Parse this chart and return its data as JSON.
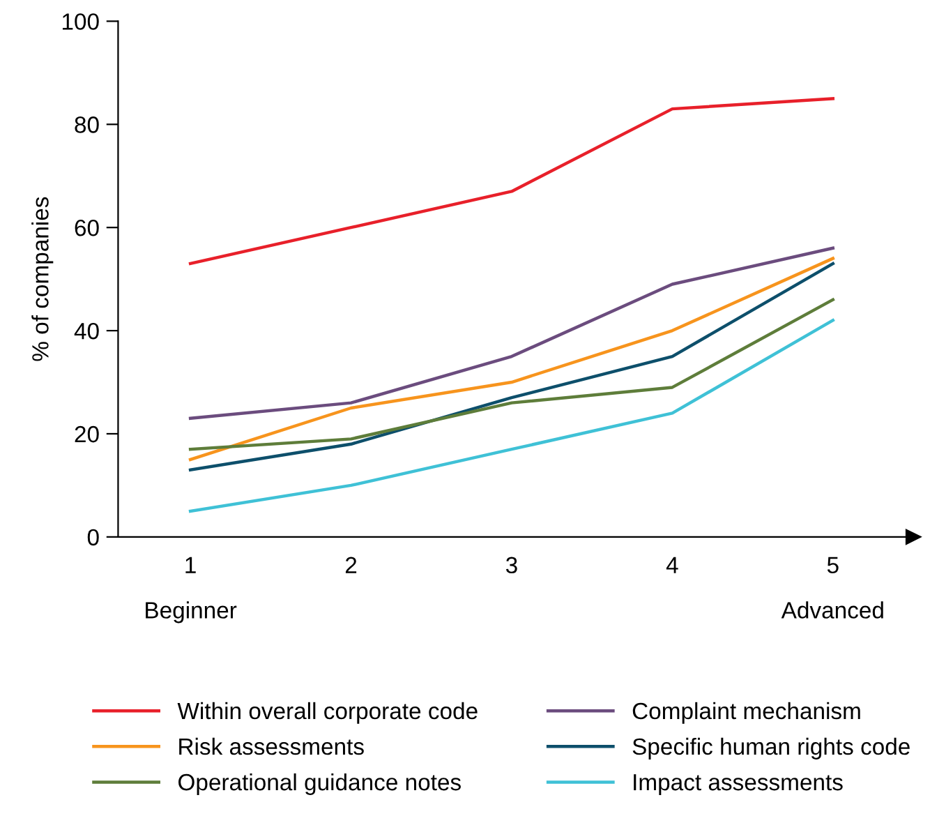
{
  "chart_data": {
    "type": "line",
    "ylabel": "% of companies",
    "x": [
      1,
      2,
      3,
      4,
      5
    ],
    "xlim": [
      0.55,
      5.5
    ],
    "xticks": [
      1,
      2,
      3,
      4,
      5
    ],
    "ylim": [
      0,
      100
    ],
    "yticks": [
      0,
      20,
      40,
      60,
      80,
      100
    ],
    "grid": false,
    "legend": "bottom",
    "marker": "none",
    "line_style": "solid",
    "annotations": [
      "Beginner",
      "Advanced"
    ],
    "series": [
      {
        "name": "Within overall corporate code",
        "color": "#e8202a",
        "values": [
          53,
          60,
          67,
          83,
          85
        ]
      },
      {
        "name": "Complaint mechanism",
        "color": "#6b4c7e",
        "values": [
          23,
          26,
          35,
          49,
          56
        ]
      },
      {
        "name": "Risk assessments",
        "color": "#f7941d",
        "values": [
          15,
          25,
          30,
          40,
          54
        ]
      },
      {
        "name": "Specific human rights code",
        "color": "#0d4f6b",
        "values": [
          13,
          18,
          27,
          35,
          53
        ]
      },
      {
        "name": "Operational guidance notes",
        "color": "#5e7d3a",
        "values": [
          17,
          19,
          26,
          29,
          46
        ]
      },
      {
        "name": "Impact assessments",
        "color": "#3fc1d6",
        "values": [
          5,
          10,
          17,
          24,
          42
        ]
      }
    ]
  }
}
